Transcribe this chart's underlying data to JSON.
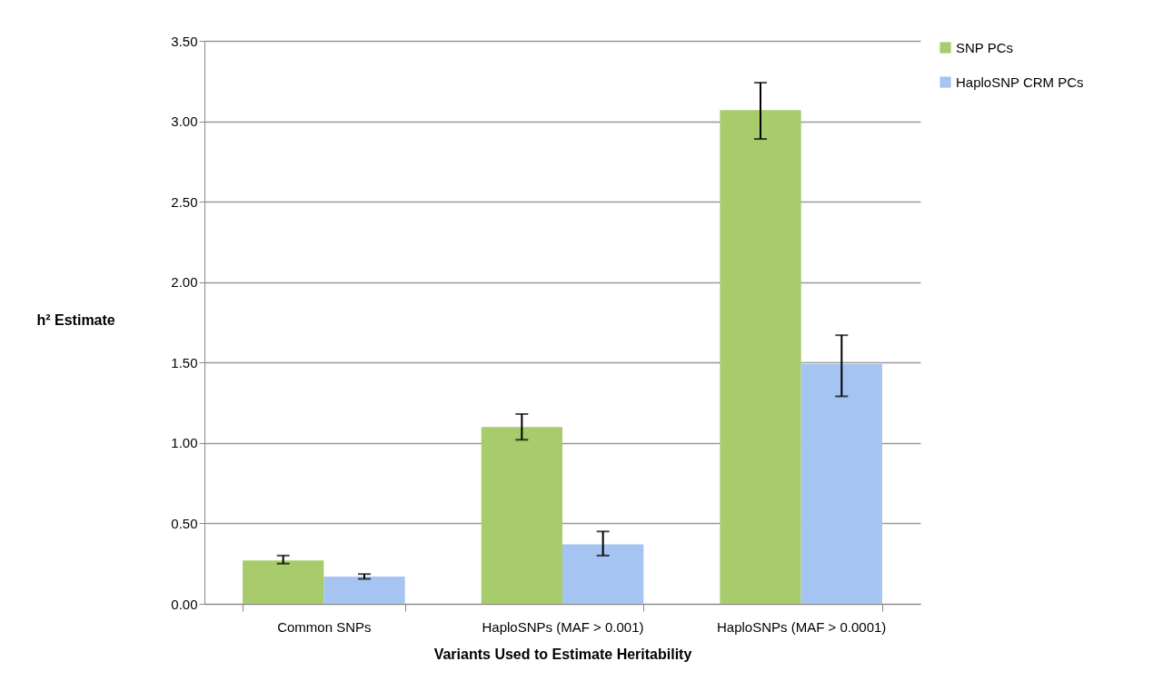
{
  "chart_data": {
    "type": "bar",
    "xlabel": "Variants Used to Estimate Heritability",
    "ylabel": "h² Estimate",
    "categories": [
      "Common SNPs",
      "HaploSNPs (MAF > 0.001)",
      "HaploSNPs (MAF > 0.0001)"
    ],
    "series": [
      {
        "name": "SNP PCs",
        "color": "#a8cc6c",
        "values": [
          0.27,
          1.1,
          3.07
        ],
        "errors": [
          [
            0.25,
            0.3
          ],
          [
            1.02,
            1.18
          ],
          [
            2.89,
            3.24
          ]
        ]
      },
      {
        "name": "HaploSNP CRM PCs",
        "color": "#a6c4f2",
        "values": [
          0.17,
          0.37,
          1.49
        ],
        "errors": [
          [
            0.155,
            0.185
          ],
          [
            0.3,
            0.45
          ],
          [
            1.29,
            1.67
          ]
        ]
      }
    ],
    "ylim": [
      0,
      3.5
    ],
    "yticks": [
      {
        "value": 0,
        "label": "0.00"
      },
      {
        "value": 0.5,
        "label": "0.50"
      },
      {
        "value": 1,
        "label": "1.00"
      },
      {
        "value": 1.5,
        "label": "1.50"
      },
      {
        "value": 2,
        "label": "2.00"
      },
      {
        "value": 2.5,
        "label": "2.50"
      },
      {
        "value": 3,
        "label": "3.00"
      },
      {
        "value": 3.5,
        "label": "3.50"
      }
    ],
    "grid": "y",
    "legend": "right"
  }
}
